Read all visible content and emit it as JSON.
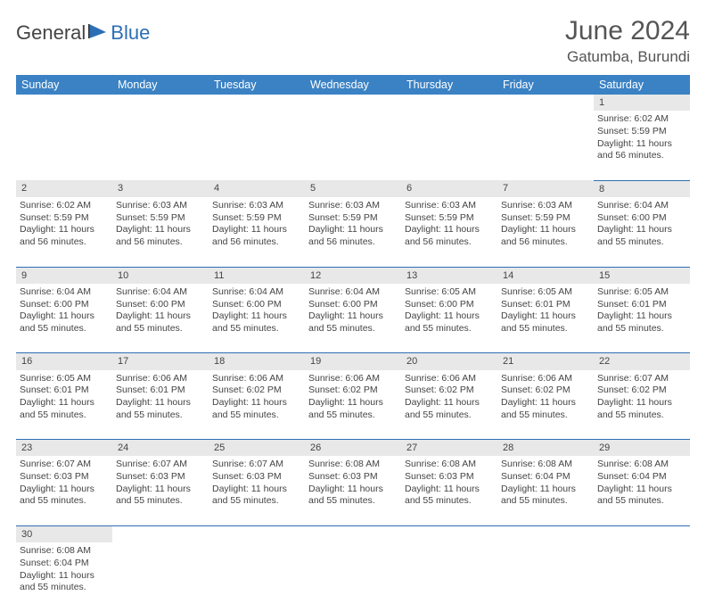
{
  "brand": {
    "part1": "General",
    "part2": "Blue"
  },
  "title": "June 2024",
  "location": "Gatumba, Burundi",
  "colors": {
    "header_bg": "#3b82c4",
    "header_text": "#ffffff",
    "daynum_bg": "#e8e8e8",
    "border": "#2d6fb5",
    "brand_blue": "#2d6fb5",
    "text": "#444"
  },
  "weekdays": [
    "Sunday",
    "Monday",
    "Tuesday",
    "Wednesday",
    "Thursday",
    "Friday",
    "Saturday"
  ],
  "weeks": [
    {
      "nums": [
        "",
        "",
        "",
        "",
        "",
        "",
        "1"
      ],
      "cells": [
        null,
        null,
        null,
        null,
        null,
        null,
        {
          "sr": "6:02 AM",
          "ss": "5:59 PM",
          "dl": "11 hours and 56 minutes."
        }
      ]
    },
    {
      "nums": [
        "2",
        "3",
        "4",
        "5",
        "6",
        "7",
        "8"
      ],
      "cells": [
        {
          "sr": "6:02 AM",
          "ss": "5:59 PM",
          "dl": "11 hours and 56 minutes."
        },
        {
          "sr": "6:03 AM",
          "ss": "5:59 PM",
          "dl": "11 hours and 56 minutes."
        },
        {
          "sr": "6:03 AM",
          "ss": "5:59 PM",
          "dl": "11 hours and 56 minutes."
        },
        {
          "sr": "6:03 AM",
          "ss": "5:59 PM",
          "dl": "11 hours and 56 minutes."
        },
        {
          "sr": "6:03 AM",
          "ss": "5:59 PM",
          "dl": "11 hours and 56 minutes."
        },
        {
          "sr": "6:03 AM",
          "ss": "5:59 PM",
          "dl": "11 hours and 56 minutes."
        },
        {
          "sr": "6:04 AM",
          "ss": "6:00 PM",
          "dl": "11 hours and 55 minutes."
        }
      ]
    },
    {
      "nums": [
        "9",
        "10",
        "11",
        "12",
        "13",
        "14",
        "15"
      ],
      "cells": [
        {
          "sr": "6:04 AM",
          "ss": "6:00 PM",
          "dl": "11 hours and 55 minutes."
        },
        {
          "sr": "6:04 AM",
          "ss": "6:00 PM",
          "dl": "11 hours and 55 minutes."
        },
        {
          "sr": "6:04 AM",
          "ss": "6:00 PM",
          "dl": "11 hours and 55 minutes."
        },
        {
          "sr": "6:04 AM",
          "ss": "6:00 PM",
          "dl": "11 hours and 55 minutes."
        },
        {
          "sr": "6:05 AM",
          "ss": "6:00 PM",
          "dl": "11 hours and 55 minutes."
        },
        {
          "sr": "6:05 AM",
          "ss": "6:01 PM",
          "dl": "11 hours and 55 minutes."
        },
        {
          "sr": "6:05 AM",
          "ss": "6:01 PM",
          "dl": "11 hours and 55 minutes."
        }
      ]
    },
    {
      "nums": [
        "16",
        "17",
        "18",
        "19",
        "20",
        "21",
        "22"
      ],
      "cells": [
        {
          "sr": "6:05 AM",
          "ss": "6:01 PM",
          "dl": "11 hours and 55 minutes."
        },
        {
          "sr": "6:06 AM",
          "ss": "6:01 PM",
          "dl": "11 hours and 55 minutes."
        },
        {
          "sr": "6:06 AM",
          "ss": "6:02 PM",
          "dl": "11 hours and 55 minutes."
        },
        {
          "sr": "6:06 AM",
          "ss": "6:02 PM",
          "dl": "11 hours and 55 minutes."
        },
        {
          "sr": "6:06 AM",
          "ss": "6:02 PM",
          "dl": "11 hours and 55 minutes."
        },
        {
          "sr": "6:06 AM",
          "ss": "6:02 PM",
          "dl": "11 hours and 55 minutes."
        },
        {
          "sr": "6:07 AM",
          "ss": "6:02 PM",
          "dl": "11 hours and 55 minutes."
        }
      ]
    },
    {
      "nums": [
        "23",
        "24",
        "25",
        "26",
        "27",
        "28",
        "29"
      ],
      "cells": [
        {
          "sr": "6:07 AM",
          "ss": "6:03 PM",
          "dl": "11 hours and 55 minutes."
        },
        {
          "sr": "6:07 AM",
          "ss": "6:03 PM",
          "dl": "11 hours and 55 minutes."
        },
        {
          "sr": "6:07 AM",
          "ss": "6:03 PM",
          "dl": "11 hours and 55 minutes."
        },
        {
          "sr": "6:08 AM",
          "ss": "6:03 PM",
          "dl": "11 hours and 55 minutes."
        },
        {
          "sr": "6:08 AM",
          "ss": "6:03 PM",
          "dl": "11 hours and 55 minutes."
        },
        {
          "sr": "6:08 AM",
          "ss": "6:04 PM",
          "dl": "11 hours and 55 minutes."
        },
        {
          "sr": "6:08 AM",
          "ss": "6:04 PM",
          "dl": "11 hours and 55 minutes."
        }
      ]
    },
    {
      "nums": [
        "30",
        "",
        "",
        "",
        "",
        "",
        ""
      ],
      "cells": [
        {
          "sr": "6:08 AM",
          "ss": "6:04 PM",
          "dl": "11 hours and 55 minutes."
        },
        null,
        null,
        null,
        null,
        null,
        null
      ]
    }
  ],
  "labels": {
    "sunrise": "Sunrise: ",
    "sunset": "Sunset: ",
    "daylight": "Daylight: "
  }
}
